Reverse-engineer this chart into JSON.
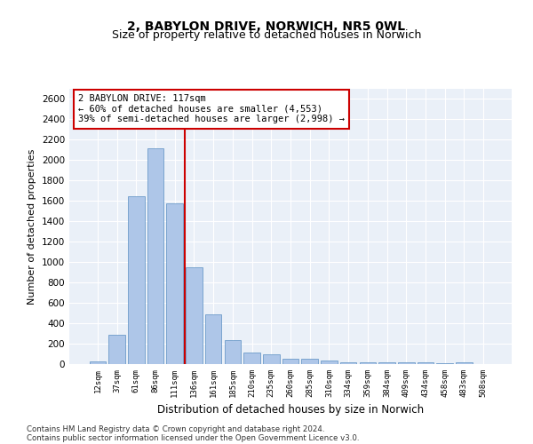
{
  "title1": "2, BABYLON DRIVE, NORWICH, NR5 0WL",
  "title2": "Size of property relative to detached houses in Norwich",
  "xlabel": "Distribution of detached houses by size in Norwich",
  "ylabel": "Number of detached properties",
  "categories": [
    "12sqm",
    "37sqm",
    "61sqm",
    "86sqm",
    "111sqm",
    "136sqm",
    "161sqm",
    "185sqm",
    "210sqm",
    "235sqm",
    "260sqm",
    "285sqm",
    "310sqm",
    "334sqm",
    "359sqm",
    "384sqm",
    "409sqm",
    "434sqm",
    "458sqm",
    "483sqm",
    "508sqm"
  ],
  "values": [
    25,
    290,
    1650,
    2120,
    1575,
    950,
    490,
    235,
    110,
    100,
    50,
    50,
    35,
    20,
    20,
    20,
    20,
    20,
    5,
    20,
    0
  ],
  "bar_color": "#aec6e8",
  "bar_edge_color": "#5a8fc2",
  "vline_x": 4.5,
  "vline_color": "#cc0000",
  "annotation_text": "2 BABYLON DRIVE: 117sqm\n← 60% of detached houses are smaller (4,553)\n39% of semi-detached houses are larger (2,998) →",
  "annotation_box_color": "#ffffff",
  "annotation_box_edge_color": "#cc0000",
  "ylim": [
    0,
    2700
  ],
  "yticks": [
    0,
    200,
    400,
    600,
    800,
    1000,
    1200,
    1400,
    1600,
    1800,
    2000,
    2200,
    2400,
    2600
  ],
  "footer1": "Contains HM Land Registry data © Crown copyright and database right 2024.",
  "footer2": "Contains public sector information licensed under the Open Government Licence v3.0.",
  "bg_color": "#eaf0f8"
}
